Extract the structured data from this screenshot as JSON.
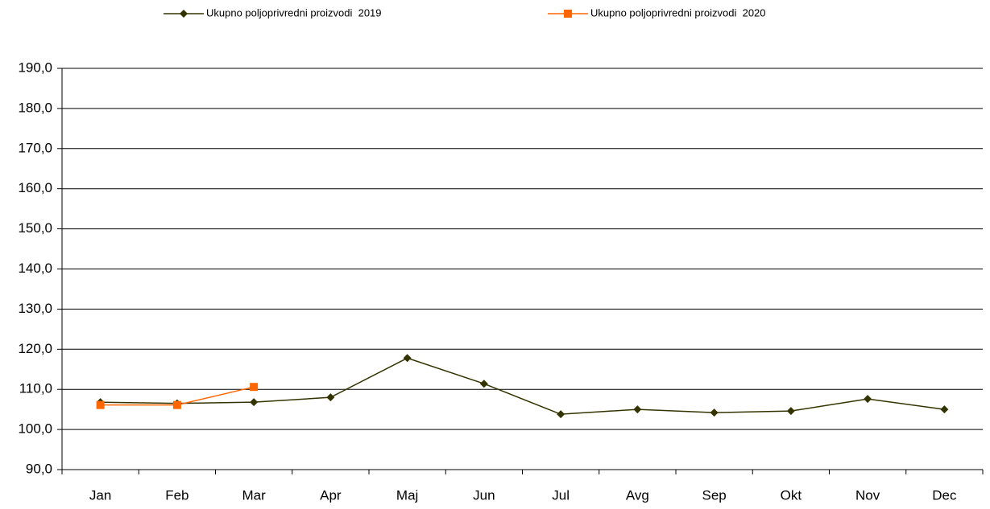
{
  "chart_data": {
    "type": "line",
    "categories": [
      "Jan",
      "Feb",
      "Mar",
      "Apr",
      "Maj",
      "Jun",
      "Jul",
      "Avg",
      "Sep",
      "Okt",
      "Nov",
      "Dec"
    ],
    "series": [
      {
        "name": "Ukupno poljoprivredni proizvodi  2019",
        "color": "#333300",
        "marker": "diamond",
        "values": [
          106.8,
          106.5,
          106.8,
          108.0,
          117.8,
          111.4,
          103.8,
          105.0,
          104.2,
          104.6,
          107.6,
          105.0
        ]
      },
      {
        "name": "Ukupno poljoprivredni proizvodi  2020",
        "color": "#ff6600",
        "marker": "square",
        "values": [
          106.1,
          106.1,
          110.6,
          null,
          null,
          null,
          null,
          null,
          null,
          null,
          null,
          null
        ]
      }
    ],
    "ylim": [
      90,
      190
    ],
    "yticks": [
      {
        "value": 90,
        "label": "90,0"
      },
      {
        "value": 100,
        "label": "100,0"
      },
      {
        "value": 110,
        "label": "110,0"
      },
      {
        "value": 120,
        "label": "120,0"
      },
      {
        "value": 130,
        "label": "130,0"
      },
      {
        "value": 140,
        "label": "140,0"
      },
      {
        "value": 150,
        "label": "150,0"
      },
      {
        "value": 160,
        "label": "160,0"
      },
      {
        "value": 170,
        "label": "170,0"
      },
      {
        "value": 180,
        "label": "180,0"
      },
      {
        "value": 190,
        "label": "190,0"
      }
    ],
    "grid": true,
    "legend": "top"
  }
}
